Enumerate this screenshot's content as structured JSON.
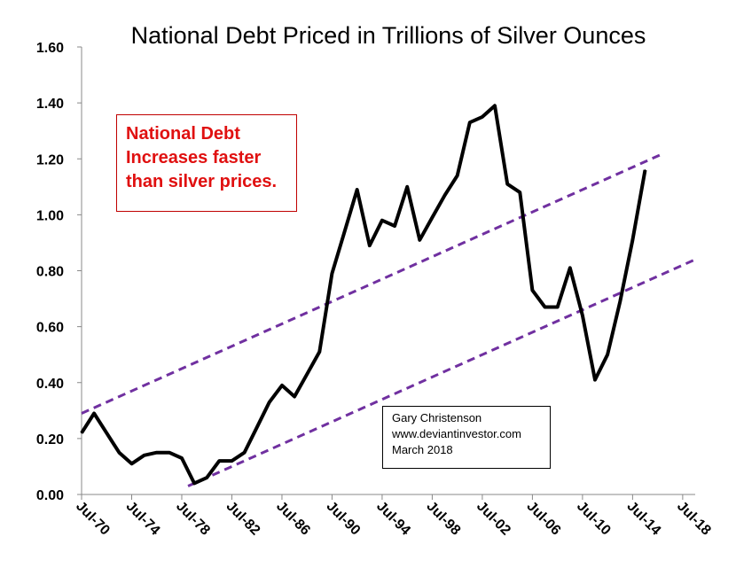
{
  "chart_data": {
    "type": "line",
    "title": "National Debt Priced in Trillions of Silver Ounces",
    "ylim": [
      0,
      1.6
    ],
    "y_ticks": [
      "0.00",
      "0.20",
      "0.40",
      "0.60",
      "0.80",
      "1.00",
      "1.20",
      "1.40",
      "1.60"
    ],
    "x_range": [
      1970.5,
      2019.5
    ],
    "x_ticks": [
      "Jul-70",
      "Jul-74",
      "Jul-78",
      "Jul-82",
      "Jul-86",
      "Jul-90",
      "Jul-94",
      "Jul-98",
      "Jul-02",
      "Jul-06",
      "Jul-10",
      "Jul-14",
      "Jul-18"
    ],
    "grid": false,
    "series": [
      {
        "color": "#000000",
        "x": [
          1970.5,
          1971.5,
          1972.5,
          1973.5,
          1974.5,
          1975.5,
          1976.5,
          1977.5,
          1978.5,
          1979.5,
          1980.5,
          1981.5,
          1982.5,
          1983.5,
          1984.5,
          1985.5,
          1986.5,
          1987.5,
          1988.5,
          1989.5,
          1990.5,
          1991.5,
          1992.5,
          1993.5,
          1994.5,
          1995.5,
          1996.5,
          1997.5,
          1998.5,
          1999.5,
          2000.5,
          2001.5,
          2002.5,
          2003.5,
          2004.5,
          2005.5,
          2006.5,
          2007.5,
          2008.5,
          2009.5,
          2010.5,
          2011.5,
          2012.5,
          2013.5,
          2014.5,
          2015.5
        ],
        "values": [
          0.22,
          0.29,
          0.22,
          0.15,
          0.11,
          0.14,
          0.15,
          0.15,
          0.13,
          0.04,
          0.06,
          0.12,
          0.12,
          0.15,
          0.24,
          0.33,
          0.39,
          0.35,
          0.43,
          0.51,
          0.79,
          0.94,
          1.09,
          0.89,
          0.98,
          0.96,
          1.1,
          0.91,
          0.99,
          1.07,
          1.14,
          1.33,
          1.35,
          1.39,
          1.11,
          1.08,
          0.73,
          0.67,
          0.67,
          0.81,
          0.64,
          0.41,
          0.5,
          0.69,
          0.91,
          1.16
        ]
      }
    ],
    "trend_lines": [
      {
        "color": "#7030a0",
        "style": "dashed",
        "x": [
          1970.5,
          2017.0
        ],
        "values": [
          0.29,
          1.22
        ]
      },
      {
        "color": "#7030a0",
        "style": "dashed",
        "x": [
          1979.0,
          2019.5
        ],
        "values": [
          0.03,
          0.84
        ]
      }
    ],
    "annotations": {
      "headline_lines": [
        "National Debt",
        "Increases faster",
        "than silver prices."
      ],
      "headline_color": "#e01010",
      "credit_lines": [
        "Gary Christenson",
        "www.deviantinvestor.com",
        "March 2018"
      ]
    }
  }
}
